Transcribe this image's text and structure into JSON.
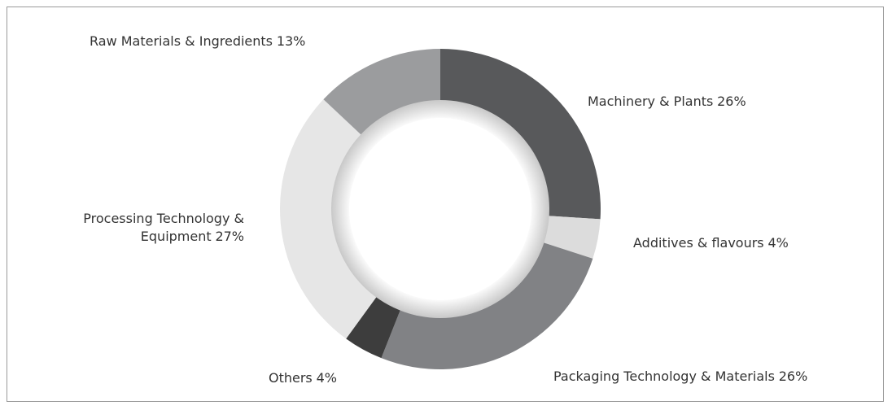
{
  "chart_data": {
    "type": "donut",
    "categories": [
      "Machinery & Plants",
      "Additives & flavours",
      "Packaging Technology & Materials",
      "Others",
      "Processing Technology & Equipment",
      "Raw Materials & Ingredients"
    ],
    "values": [
      26,
      4,
      26,
      4,
      27,
      13
    ],
    "value_labels": [
      "26%",
      "4%",
      "26%",
      "4%",
      "27%",
      "13%"
    ],
    "colors": [
      "#58595b",
      "#dcdcdc",
      "#818285",
      "#3d3d3d",
      "#e6e6e6",
      "#9b9c9e"
    ]
  }
}
